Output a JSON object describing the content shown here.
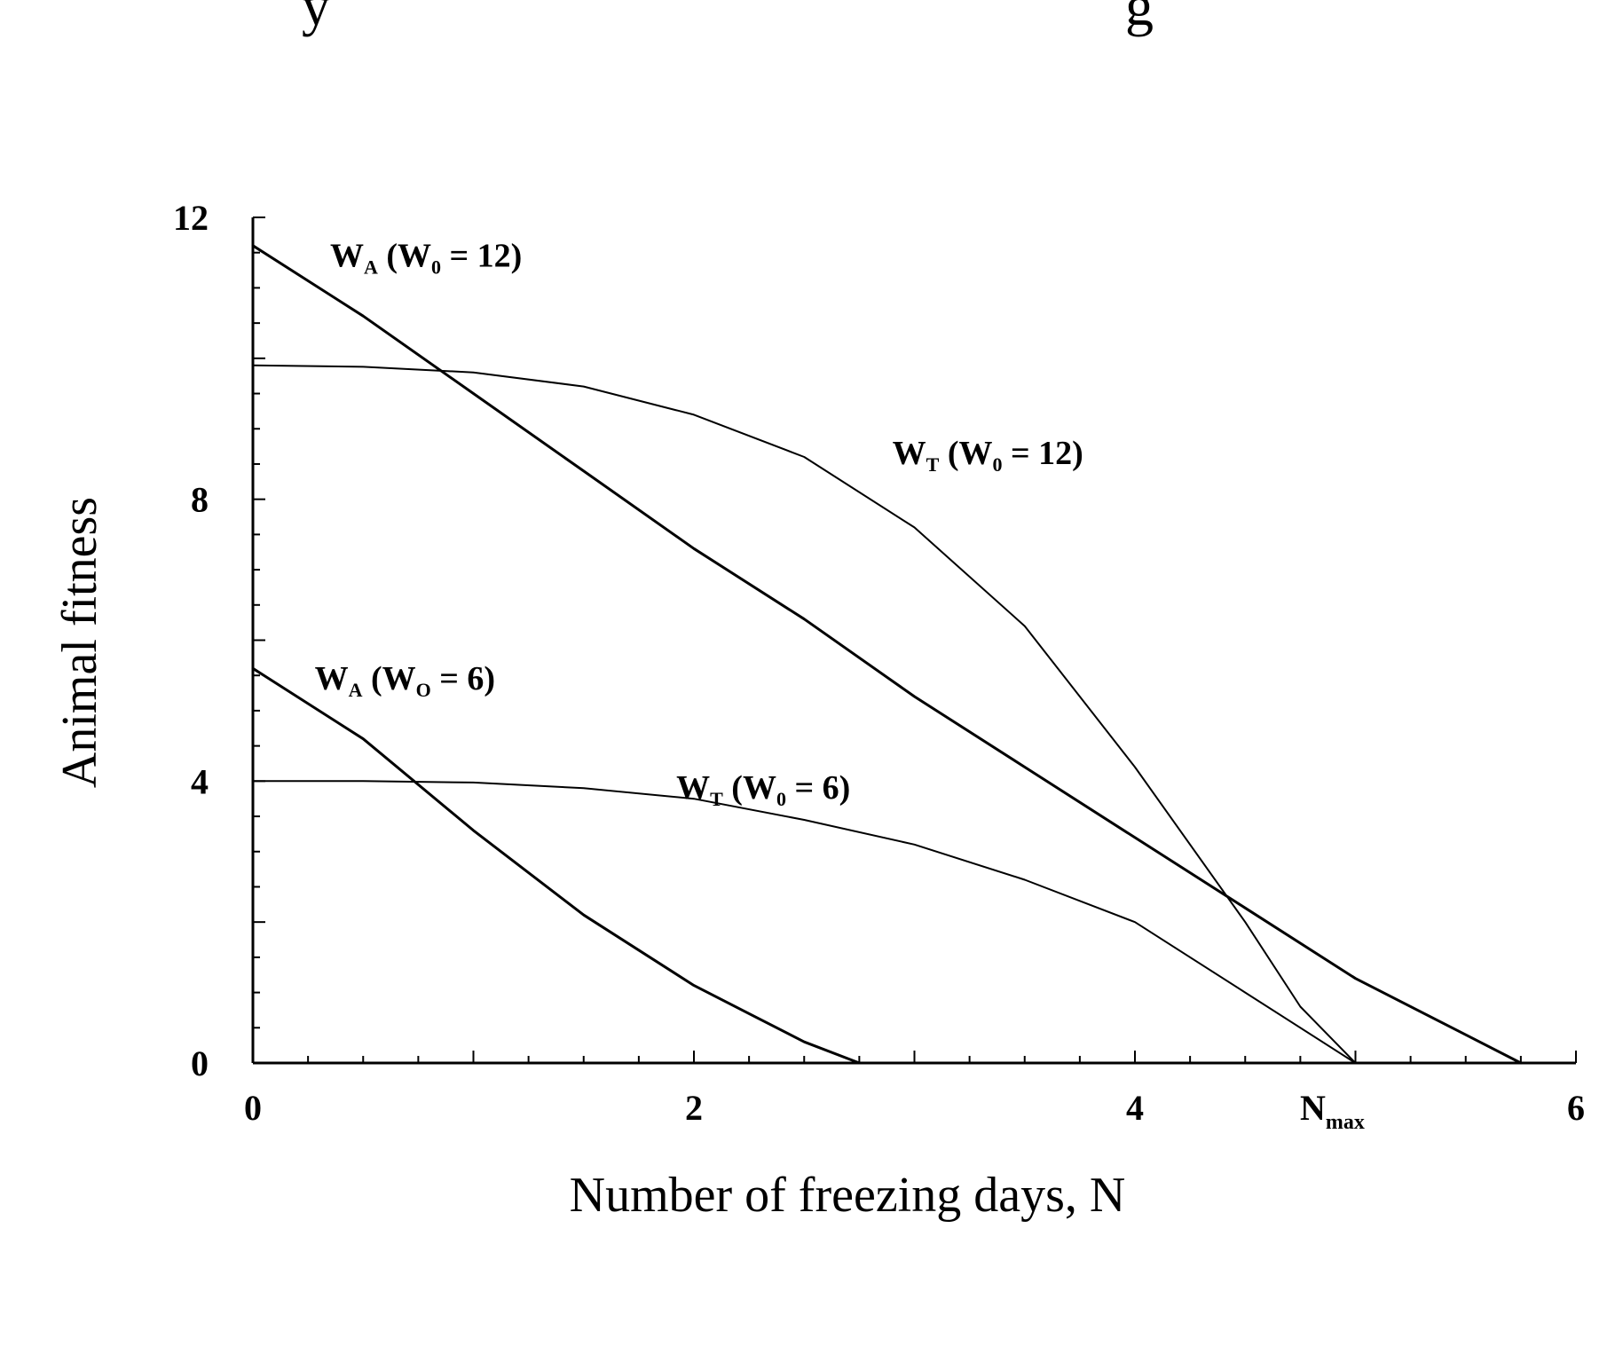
{
  "chart_data": {
    "type": "line",
    "top_text": "y                                                        g",
    "xlabel": "Number of freezing days, N",
    "ylabel": "Animal fitness",
    "xlim": [
      0,
      6
    ],
    "ylim": [
      0,
      12
    ],
    "x_ticks": [
      "0",
      "2",
      "4",
      "6"
    ],
    "y_ticks": [
      "0",
      "4",
      "8",
      "12"
    ],
    "x_annotation": {
      "main": "N",
      "sub": "max",
      "x": 5
    },
    "grid": false,
    "legend": "none",
    "series": [
      {
        "name": "W_A (W_0 = 12)",
        "label_parts": [
          "W",
          "A",
          " (W",
          "0",
          " = 12)"
        ],
        "stroke_width": 3,
        "x": [
          0,
          0.5,
          1,
          1.5,
          2,
          2.5,
          3,
          3.5,
          4,
          4.5,
          5,
          5.5,
          5.75
        ],
        "y": [
          11.6,
          10.6,
          9.5,
          8.4,
          7.3,
          6.3,
          5.2,
          4.2,
          3.2,
          2.2,
          1.2,
          0.4,
          0
        ]
      },
      {
        "name": "W_T (W_0 = 12)",
        "label_parts": [
          "W",
          "T",
          " (W",
          "0",
          " = 12)"
        ],
        "stroke_width": 2,
        "x": [
          0,
          0.5,
          1,
          1.5,
          2,
          2.5,
          3,
          3.5,
          4,
          4.5,
          4.75,
          5
        ],
        "y": [
          9.9,
          9.88,
          9.8,
          9.6,
          9.2,
          8.6,
          7.6,
          6.2,
          4.2,
          2.0,
          0.8,
          0
        ]
      },
      {
        "name": "W_A (W_O = 6)",
        "label_parts": [
          "W",
          "A",
          " (W",
          "O",
          " = 6)"
        ],
        "stroke_width": 3,
        "x": [
          0,
          0.5,
          1,
          1.5,
          2,
          2.5,
          2.75
        ],
        "y": [
          5.6,
          4.6,
          3.3,
          2.1,
          1.1,
          0.3,
          0
        ]
      },
      {
        "name": "W_T (W_0 = 6)",
        "label_parts": [
          "W",
          "T",
          " (W",
          "0",
          " = 6)"
        ],
        "stroke_width": 2,
        "x": [
          0,
          0.5,
          1,
          1.5,
          2,
          2.5,
          3,
          3.5,
          4,
          4.5,
          5
        ],
        "y": [
          4.0,
          4.0,
          3.98,
          3.9,
          3.75,
          3.45,
          3.1,
          2.6,
          2.0,
          1.0,
          0
        ]
      }
    ]
  }
}
